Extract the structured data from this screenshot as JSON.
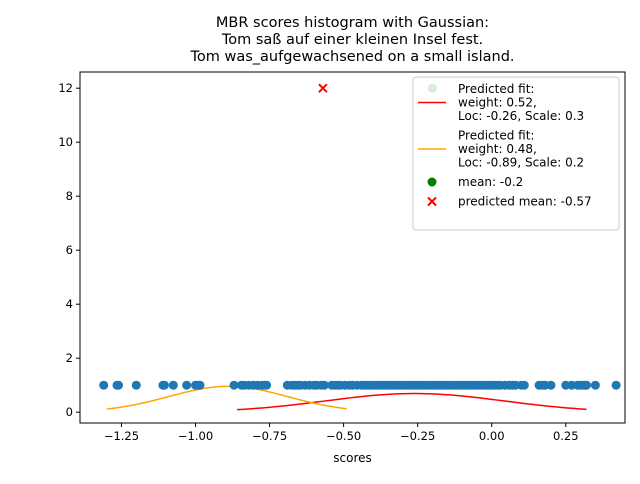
{
  "chart_data": {
    "type": "scatter",
    "title": [
      "MBR scores histogram with Gaussian:",
      "Tom saß auf einer kleinen Insel fest.",
      "Tom was_aufgewachsened on a small island."
    ],
    "xlabel": "scores",
    "ylabel": "",
    "xlim": [
      -1.39,
      0.45
    ],
    "ylim": [
      -0.4,
      12.6
    ],
    "x_ticks": [
      -1.25,
      -1.0,
      -0.75,
      -0.5,
      -0.25,
      0.0,
      0.25
    ],
    "x_tick_labels": [
      "−1.25",
      "−1.00",
      "−0.75",
      "−0.50",
      "−0.25",
      "0.00",
      "0.25"
    ],
    "y_ticks": [
      0,
      2,
      4,
      6,
      8,
      10,
      12
    ],
    "y_tick_labels": [
      "0",
      "2",
      "4",
      "6",
      "8",
      "10",
      "12"
    ],
    "grid": false,
    "legend_position": "top-right",
    "colors": {
      "scores": "#1f77b4",
      "fit1": "#ff0000",
      "fit2": "#ffa500",
      "mean": "#008000",
      "predicted_mean": "#ff0000"
    },
    "score_points": {
      "y": 1,
      "x": [
        -1.31,
        -1.265,
        -1.26,
        -1.2,
        -1.11,
        -1.105,
        -1.075,
        -1.03,
        -1.0,
        -0.99,
        -0.985,
        -0.87,
        -0.845,
        -0.835,
        -0.82,
        -0.805,
        -0.79,
        -0.775,
        -0.765,
        -0.76,
        -0.69,
        -0.675,
        -0.665,
        -0.655,
        -0.645,
        -0.63,
        -0.615,
        -0.6,
        -0.59,
        -0.575,
        -0.565,
        -0.54,
        -0.53,
        -0.52,
        -0.51,
        -0.495,
        -0.48,
        -0.47,
        -0.455,
        -0.44,
        -0.43,
        -0.42,
        -0.41,
        -0.4,
        -0.39,
        -0.38,
        -0.37,
        -0.36,
        -0.35,
        -0.34,
        -0.33,
        -0.32,
        -0.31,
        -0.3,
        -0.29,
        -0.28,
        -0.27,
        -0.26,
        -0.25,
        -0.24,
        -0.23,
        -0.22,
        -0.21,
        -0.2,
        -0.19,
        -0.18,
        -0.17,
        -0.16,
        -0.15,
        -0.14,
        -0.13,
        -0.12,
        -0.11,
        -0.1,
        -0.09,
        -0.08,
        -0.07,
        -0.06,
        -0.05,
        -0.04,
        -0.03,
        -0.02,
        -0.01,
        0.0,
        0.01,
        0.02,
        0.03,
        0.045,
        0.06,
        0.07,
        0.08,
        0.1,
        0.11,
        0.16,
        0.17,
        0.18,
        0.2,
        0.25,
        0.27,
        0.29,
        0.3,
        0.31,
        0.315,
        0.32,
        0.35,
        0.42
      ]
    },
    "series": [
      {
        "name": "Predicted fit:\nweight: 0.52,\nLoc: -0.26, Scale: 0.3",
        "label_lines": [
          "Predicted fit:",
          "weight: 0.52,",
          "Loc: -0.26, Scale: 0.3"
        ],
        "kind": "curve",
        "weight": 0.52,
        "loc": -0.26,
        "scale": 0.3,
        "x_range": [
          -0.86,
          0.32
        ]
      },
      {
        "name": "Predicted fit:\nweight: 0.48,\nLoc: -0.89, Scale: 0.2",
        "label_lines": [
          "Predicted fit:",
          "weight: 0.48,",
          "Loc: -0.89, Scale: 0.2"
        ],
        "kind": "curve",
        "weight": 0.48,
        "loc": -0.89,
        "scale": 0.2,
        "x_range": [
          -1.3,
          -0.49
        ]
      },
      {
        "name": "mean: -0.2",
        "label_lines": [
          "mean: -0.2"
        ],
        "kind": "point",
        "marker": "circle",
        "x": -0.2,
        "y": 12
      },
      {
        "name": "predicted mean: -0.57",
        "label_lines": [
          "predicted mean: -0.57"
        ],
        "kind": "point",
        "marker": "x",
        "x": -0.57,
        "y": 12
      }
    ]
  }
}
